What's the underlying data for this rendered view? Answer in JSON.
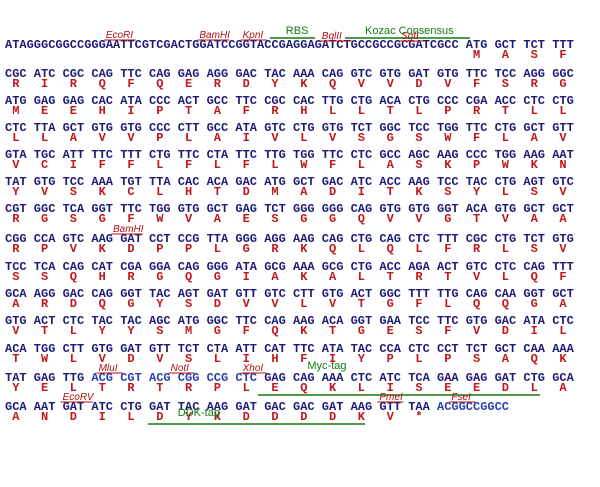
{
  "lines": [
    {
      "prefix": "ATAGGGCGGCCGGGAATTCGTCGACTGGATCCGGTACCGAGGAGATCTGCCGCCGCGATCGCC",
      "codons": [
        "ATG",
        "GCT",
        "TCT",
        "TTT"
      ],
      "aa": [
        "M",
        "A",
        "S",
        "F"
      ],
      "annotations": [
        {
          "label": "EcoRI",
          "kind": "site"
        },
        {
          "label": "BamHI",
          "kind": "site"
        },
        {
          "label": "KpnI",
          "kind": "site"
        },
        {
          "label": "RBS",
          "kind": "tag"
        },
        {
          "label": "BglII",
          "kind": "site"
        },
        {
          "label": "Kozac Consensus",
          "kind": "tag"
        },
        {
          "label": "SgfI",
          "kind": "site"
        }
      ]
    },
    {
      "codons": [
        "CGC",
        "ATC",
        "CGC",
        "CAG",
        "TTC",
        "CAG",
        "GAG",
        "AGG",
        "GAC",
        "TAC",
        "AAA",
        "CAG",
        "GTC",
        "GTG",
        "GAT",
        "GTG",
        "TTC",
        "TCC",
        "AGG",
        "GGC"
      ],
      "aa": [
        "R",
        "I",
        "R",
        "Q",
        "F",
        "Q",
        "E",
        "R",
        "D",
        "Y",
        "K",
        "Q",
        "V",
        "V",
        "D",
        "V",
        "F",
        "S",
        "R",
        "G"
      ]
    },
    {
      "codons": [
        "ATG",
        "GAG",
        "GAG",
        "CAC",
        "ATA",
        "CCC",
        "ACT",
        "GCC",
        "TTC",
        "CGC",
        "CAC",
        "TTG",
        "CTG",
        "ACA",
        "CTG",
        "CCC",
        "CGA",
        "ACC",
        "CTC",
        "CTG"
      ],
      "aa": [
        "M",
        "E",
        "E",
        "H",
        "I",
        "P",
        "T",
        "A",
        "F",
        "R",
        "H",
        "L",
        "L",
        "T",
        "L",
        "P",
        "R",
        "T",
        "L",
        "L"
      ]
    },
    {
      "codons": [
        "CTC",
        "TTA",
        "GCT",
        "GTG",
        "GTG",
        "CCC",
        "CTT",
        "GCC",
        "ATA",
        "GTC",
        "CTG",
        "GTG",
        "TCT",
        "GGC",
        "TCC",
        "TGG",
        "TTC",
        "CTG",
        "GCT",
        "GTT"
      ],
      "aa": [
        "L",
        "L",
        "A",
        "V",
        "V",
        "P",
        "L",
        "A",
        "I",
        "V",
        "L",
        "V",
        "S",
        "G",
        "S",
        "W",
        "F",
        "L",
        "A",
        "V"
      ]
    },
    {
      "codons": [
        "GTA",
        "TGC",
        "ATT",
        "TTC",
        "TTT",
        "CTG",
        "TTC",
        "CTA",
        "TTC",
        "TTG",
        "TGG",
        "TTC",
        "CTC",
        "GCC",
        "AGC",
        "AAG",
        "CCC",
        "TGG",
        "AAG",
        "AAT"
      ],
      "aa": [
        "V",
        "C",
        "I",
        "F",
        "F",
        "L",
        "F",
        "L",
        "F",
        "L",
        "W",
        "F",
        "L",
        "A",
        "S",
        "K",
        "P",
        "W",
        "K",
        "N"
      ]
    },
    {
      "codons": [
        "TAT",
        "GTG",
        "TCC",
        "AAA",
        "TGT",
        "TTA",
        "CAC",
        "ACA",
        "GAC",
        "ATG",
        "GCT",
        "GAC",
        "ATC",
        "ACC",
        "AAG",
        "TCC",
        "TAC",
        "CTG",
        "AGT",
        "GTC"
      ],
      "aa": [
        "Y",
        "V",
        "S",
        "K",
        "C",
        "L",
        "H",
        "T",
        "D",
        "M",
        "A",
        "D",
        "I",
        "T",
        "K",
        "S",
        "Y",
        "L",
        "S",
        "V"
      ]
    },
    {
      "codons": [
        "CGT",
        "GGC",
        "TCA",
        "GGT",
        "TTC",
        "TGG",
        "GTG",
        "GCT",
        "GAG",
        "TCT",
        "GGG",
        "GGG",
        "CAG",
        "GTG",
        "GTG",
        "GGT",
        "ACA",
        "GTG",
        "GCT",
        "GCT"
      ],
      "aa": [
        "R",
        "G",
        "S",
        "G",
        "F",
        "W",
        "V",
        "A",
        "E",
        "S",
        "G",
        "G",
        "Q",
        "V",
        "V",
        "G",
        "T",
        "V",
        "A",
        "A"
      ]
    },
    {
      "codons": [
        "CGG",
        "CCA",
        "GTC",
        "AAG",
        "GAT",
        "CCT",
        "CCG",
        "TTA",
        "GGG",
        "AGG",
        "AAG",
        "CAG",
        "CTG",
        "CAG",
        "CTC",
        "TTT",
        "CGC",
        "CTG",
        "TCT",
        "GTG"
      ],
      "aa": [
        "R",
        "P",
        "V",
        "K",
        "D",
        "P",
        "P",
        "L",
        "G",
        "R",
        "K",
        "Q",
        "L",
        "Q",
        "L",
        "F",
        "R",
        "L",
        "S",
        "V"
      ],
      "annotations": [
        {
          "label": "BamHI",
          "kind": "site"
        }
      ]
    },
    {
      "codons": [
        "TCC",
        "TCA",
        "CAG",
        "CAT",
        "CGA",
        "GGA",
        "CAG",
        "GGG",
        "ATA",
        "GCG",
        "AAA",
        "GCG",
        "CTG",
        "ACC",
        "AGA",
        "ACT",
        "GTC",
        "CTC",
        "CAG",
        "TTT"
      ],
      "aa": [
        "S",
        "S",
        "Q",
        "H",
        "R",
        "G",
        "Q",
        "G",
        "I",
        "A",
        "K",
        "A",
        "L",
        "T",
        "R",
        "T",
        "V",
        "L",
        "Q",
        "F"
      ]
    },
    {
      "codons": [
        "GCA",
        "AGG",
        "GAC",
        "CAG",
        "GGT",
        "TAC",
        "AGT",
        "GAT",
        "GTT",
        "GTC",
        "CTT",
        "GTG",
        "ACT",
        "GGC",
        "TTT",
        "TTG",
        "CAG",
        "CAA",
        "GGT",
        "GCT"
      ],
      "aa": [
        "A",
        "R",
        "D",
        "Q",
        "G",
        "Y",
        "S",
        "D",
        "V",
        "V",
        "L",
        "V",
        "T",
        "G",
        "F",
        "L",
        "Q",
        "Q",
        "G",
        "A"
      ]
    },
    {
      "codons": [
        "GTG",
        "ACT",
        "CTC",
        "TAC",
        "TAC",
        "AGC",
        "ATG",
        "GGC",
        "TTC",
        "CAG",
        "AAG",
        "ACA",
        "GGT",
        "GAA",
        "TCC",
        "TTC",
        "GTG",
        "GAC",
        "ATA",
        "CTC"
      ],
      "aa": [
        "V",
        "T",
        "L",
        "Y",
        "Y",
        "S",
        "M",
        "G",
        "F",
        "Q",
        "K",
        "T",
        "G",
        "E",
        "S",
        "F",
        "V",
        "D",
        "I",
        "L"
      ]
    },
    {
      "codons": [
        "ACA",
        "TGG",
        "CTT",
        "GTG",
        "GAT",
        "GTT",
        "TCT",
        "CTA",
        "ATT",
        "CAT",
        "TTC",
        "ATA",
        "TAC",
        "CCA",
        "CTC",
        "CCT",
        "TCT",
        "GCT",
        "CAA",
        "AAA"
      ],
      "aa": [
        "T",
        "W",
        "L",
        "V",
        "D",
        "V",
        "S",
        "L",
        "I",
        "H",
        "F",
        "I",
        "Y",
        "P",
        "L",
        "P",
        "S",
        "A",
        "Q",
        "K"
      ]
    },
    {
      "codons": [
        "TAT",
        "GAG",
        "TTG",
        "ACG",
        "CGT",
        "ACG",
        "CGG",
        "CCG",
        "CTC",
        "GAG",
        "CAG",
        "AAA",
        "CTC",
        "ATC",
        "TCA",
        "GAA",
        "GAG",
        "GAT",
        "CTG",
        "GCA"
      ],
      "aa": [
        "Y",
        "E",
        "L",
        "T",
        "R",
        "T",
        "R",
        "P",
        "L",
        "E",
        "Q",
        "K",
        "L",
        "I",
        "S",
        "E",
        "E",
        "D",
        "L",
        "A"
      ],
      "annotations": [
        {
          "label": "MluI",
          "kind": "site"
        },
        {
          "label": "NotI",
          "kind": "site"
        },
        {
          "label": "XhoI",
          "kind": "site"
        },
        {
          "label": "Myc-tag",
          "kind": "tag"
        }
      ]
    },
    {
      "codons": [
        "GCA",
        "AAT",
        "GAT",
        "ATC",
        "CTG",
        "GAT",
        "TAC",
        "AAG",
        "GAT",
        "GAC",
        "GAC",
        "GAT",
        "AAG",
        "GTT",
        "TAA",
        "ACGGCCGGCC"
      ],
      "aa": [
        "A",
        "N",
        "D",
        "I",
        "L",
        "D",
        "Y",
        "K",
        "D",
        "D",
        "D",
        "D",
        "K",
        "V",
        "*"
      ],
      "annotations": [
        {
          "label": "EcoRV",
          "kind": "site"
        },
        {
          "label": "DDK-tag",
          "kind": "tag"
        },
        {
          "label": "PmeI",
          "kind": "site"
        },
        {
          "label": "FseI",
          "kind": "site"
        }
      ]
    }
  ]
}
